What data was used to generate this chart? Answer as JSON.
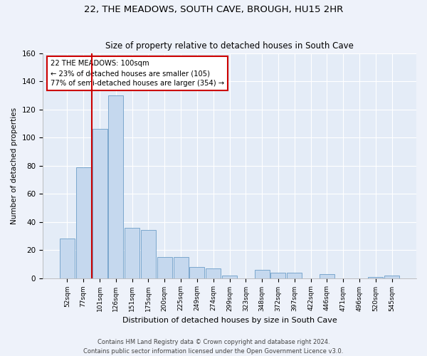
{
  "title1": "22, THE MEADOWS, SOUTH CAVE, BROUGH, HU15 2HR",
  "title2": "Size of property relative to detached houses in South Cave",
  "xlabel": "Distribution of detached houses by size in South Cave",
  "ylabel": "Number of detached properties",
  "categories": [
    "52sqm",
    "77sqm",
    "101sqm",
    "126sqm",
    "151sqm",
    "175sqm",
    "200sqm",
    "225sqm",
    "249sqm",
    "274sqm",
    "299sqm",
    "323sqm",
    "348sqm",
    "372sqm",
    "397sqm",
    "422sqm",
    "446sqm",
    "471sqm",
    "496sqm",
    "520sqm",
    "545sqm"
  ],
  "values": [
    28,
    79,
    106,
    130,
    36,
    34,
    15,
    15,
    8,
    7,
    2,
    0,
    6,
    4,
    4,
    0,
    3,
    0,
    0,
    1,
    2
  ],
  "bar_color": "#c5d8ee",
  "bar_edge_color": "#7ba7cd",
  "ylim": [
    0,
    160
  ],
  "yticks": [
    0,
    20,
    40,
    60,
    80,
    100,
    120,
    140,
    160
  ],
  "annotation_line1": "22 THE MEADOWS: 100sqm",
  "annotation_line2": "← 23% of detached houses are smaller (105)",
  "annotation_line3": "77% of semi-detached houses are larger (354) →",
  "footer1": "Contains HM Land Registry data © Crown copyright and database right 2024.",
  "footer2": "Contains public sector information licensed under the Open Government Licence v3.0.",
  "background_color": "#eef2fa",
  "plot_bg_color": "#e4ecf7",
  "grid_color": "#ffffff",
  "annotation_box_color": "#ffffff",
  "annotation_box_edge": "#cc0000",
  "red_line_color": "#cc0000",
  "red_line_x": 1.5
}
